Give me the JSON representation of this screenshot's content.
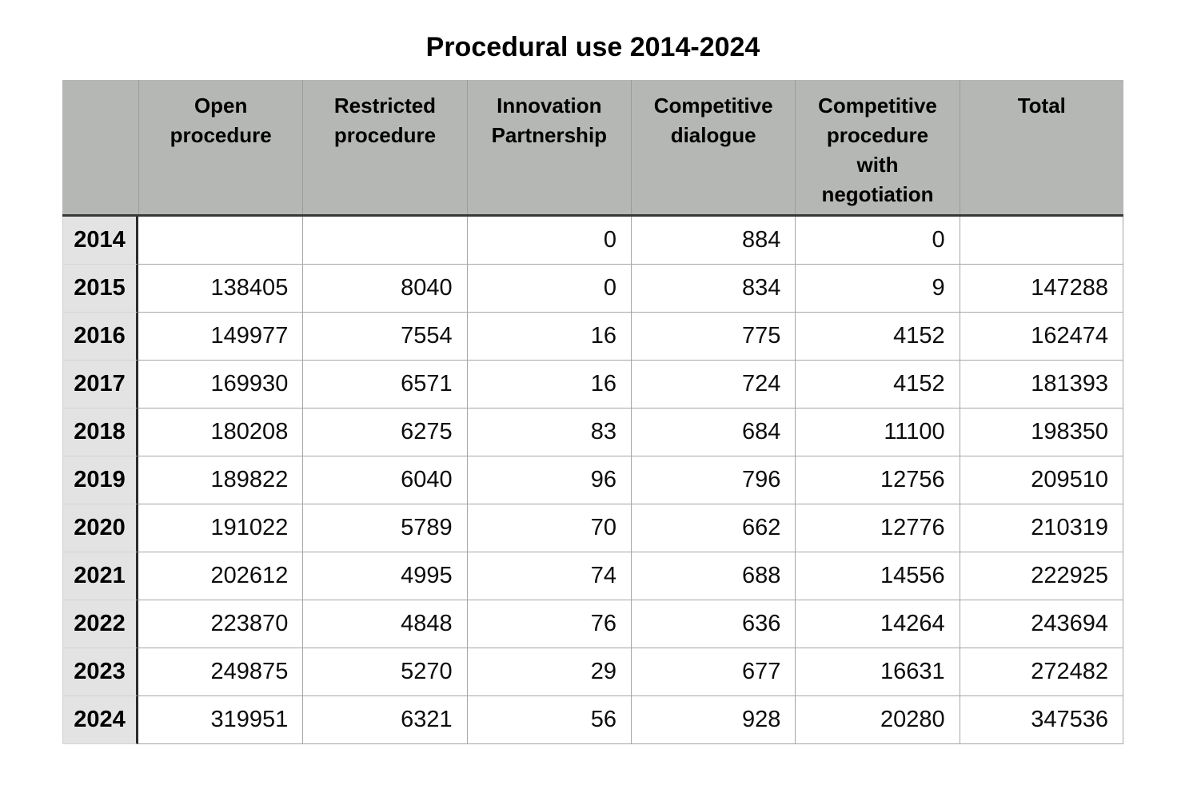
{
  "title": "Procedural use 2014-2024",
  "chart_data": {
    "type": "table",
    "title": "Procedural use 2014-2024",
    "columns": [
      "Open procedure",
      "Restricted procedure",
      "Innovation Partnership",
      "Competitive dialogue",
      "Competitive procedure with negotiation",
      "Total"
    ],
    "rows": [
      {
        "year": "2014",
        "values": [
          "",
          "",
          "0",
          "884",
          "0",
          ""
        ]
      },
      {
        "year": "2015",
        "values": [
          "138405",
          "8040",
          "0",
          "834",
          "9",
          "147288"
        ]
      },
      {
        "year": "2016",
        "values": [
          "149977",
          "7554",
          "16",
          "775",
          "4152",
          "162474"
        ]
      },
      {
        "year": "2017",
        "values": [
          "169930",
          "6571",
          "16",
          "724",
          "4152",
          "181393"
        ]
      },
      {
        "year": "2018",
        "values": [
          "180208",
          "6275",
          "83",
          "684",
          "11100",
          "198350"
        ]
      },
      {
        "year": "2019",
        "values": [
          "189822",
          "6040",
          "96",
          "796",
          "12756",
          "209510"
        ]
      },
      {
        "year": "2020",
        "values": [
          "191022",
          "5789",
          "70",
          "662",
          "12776",
          "210319"
        ]
      },
      {
        "year": "2021",
        "values": [
          "202612",
          "4995",
          "74",
          "688",
          "14556",
          "222925"
        ]
      },
      {
        "year": "2022",
        "values": [
          "223870",
          "4848",
          "76",
          "636",
          "14264",
          "243694"
        ]
      },
      {
        "year": "2023",
        "values": [
          "249875",
          "5270",
          "29",
          "677",
          "16631",
          "272482"
        ]
      },
      {
        "year": "2024",
        "values": [
          "319951",
          "6321",
          "56",
          "928",
          "20280",
          "347536"
        ]
      }
    ]
  },
  "colors": {
    "header_bg": "#b5b7b4",
    "year_column_bg": "#e3e3e3",
    "heavy_border": "#333333",
    "grid_line": "#a6a6a6",
    "text": "#000000",
    "page_bg": "#ffffff"
  }
}
